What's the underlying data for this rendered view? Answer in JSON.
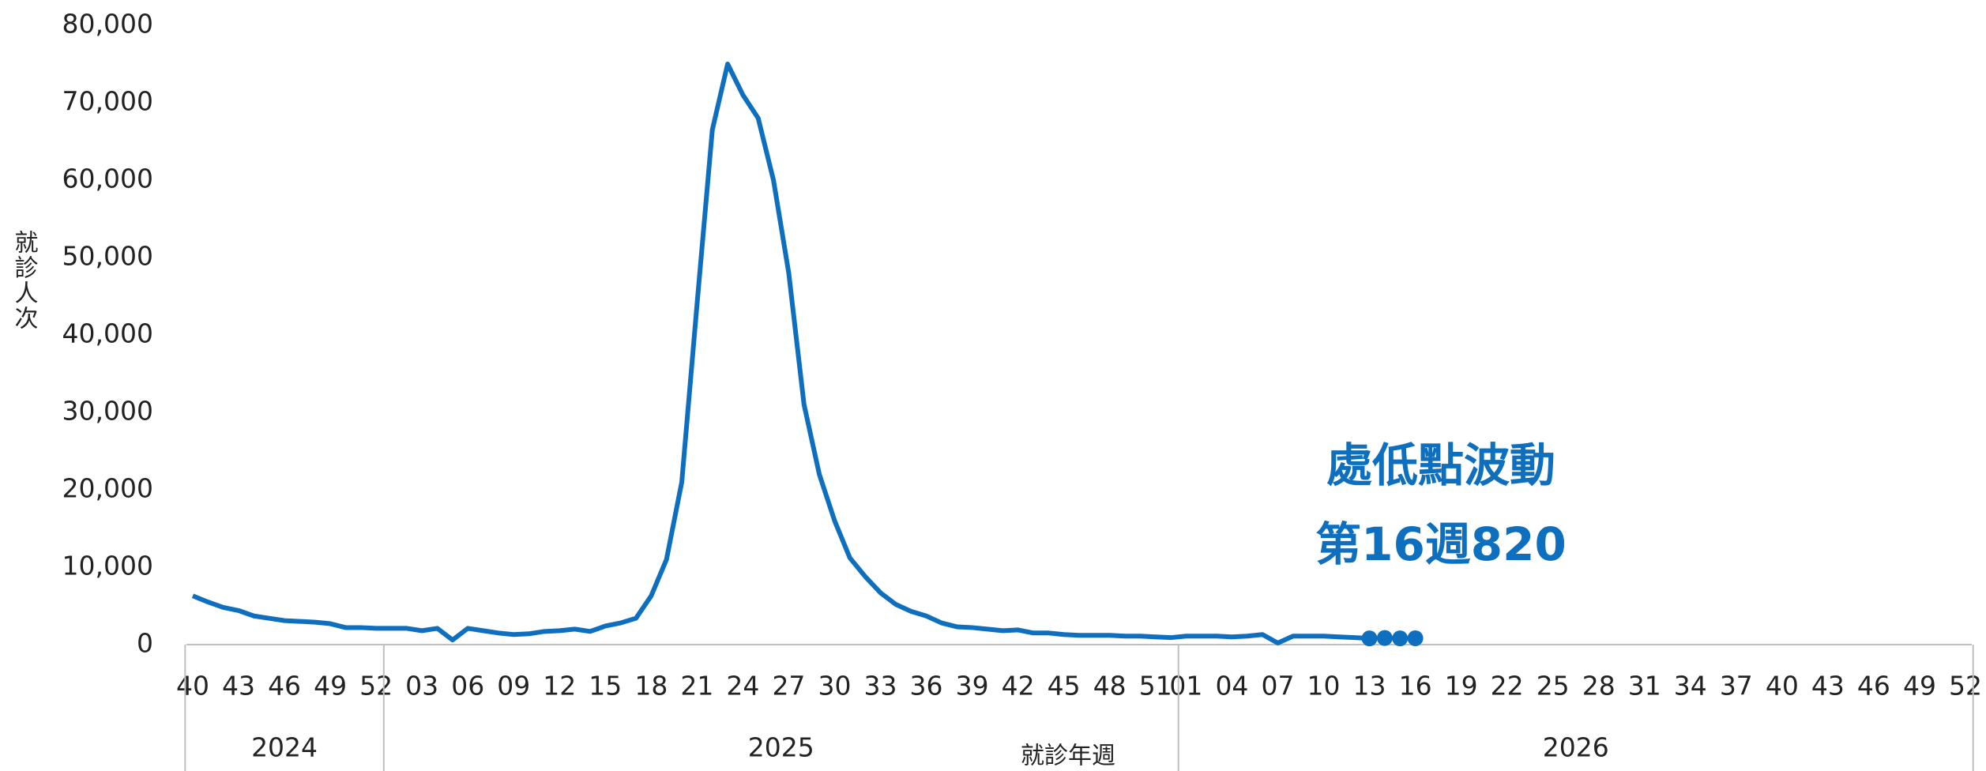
{
  "chart_data": {
    "type": "line",
    "y_label": "就診人次",
    "x_label": "就診年週",
    "annotations": [
      "處低點波動",
      "第16週820"
    ],
    "categories": [
      "40",
      null,
      null,
      "43",
      null,
      null,
      "46",
      null,
      null,
      "49",
      null,
      null,
      "52",
      null,
      null,
      "03",
      null,
      null,
      "06",
      null,
      null,
      "09",
      null,
      null,
      "12",
      null,
      null,
      "15",
      null,
      null,
      "18",
      null,
      null,
      "21",
      null,
      null,
      "24",
      null,
      null,
      "27",
      null,
      null,
      "30",
      null,
      null,
      "33",
      null,
      null,
      "36",
      null,
      null,
      "39",
      null,
      null,
      "42",
      null,
      null,
      "45",
      null,
      null,
      "48",
      null,
      null,
      "51",
      null,
      "01",
      null,
      null,
      "04",
      null,
      null,
      "07",
      null,
      null,
      "10",
      null,
      null,
      "13",
      null,
      null,
      "16",
      null,
      null,
      "19",
      null,
      null,
      "22",
      null,
      null,
      "25",
      null,
      null,
      "28",
      null,
      null,
      "31",
      null,
      null,
      "34",
      null,
      null,
      "37",
      null,
      null,
      "40",
      null,
      null,
      "43",
      null,
      null,
      "46",
      null,
      null,
      "49",
      null,
      null,
      "52"
    ],
    "year_groups": [
      {
        "label": "2024",
        "weeks": 13
      },
      {
        "label": "2025",
        "weeks": 52
      },
      {
        "label": "2026",
        "weeks": 52
      }
    ],
    "series": [
      {
        "color": "#0e6fbe",
        "marker": "line",
        "values": [
          6300,
          5500,
          4800,
          4400,
          3700,
          3400,
          3100,
          3000,
          2900,
          2700,
          2200,
          2200,
          2100,
          2100,
          2100,
          1800,
          2100,
          600,
          2100,
          1800,
          1500,
          1300,
          1400,
          1700,
          1800,
          2000,
          1700,
          2400,
          2800,
          3400,
          6300,
          11000,
          21000,
          44000,
          66500,
          75000,
          71000,
          68000,
          60000,
          48000,
          31000,
          22000,
          16000,
          11200,
          8800,
          6700,
          5200,
          4300,
          3700,
          2800,
          2300,
          2200,
          2000,
          1800,
          1900,
          1500,
          1500,
          1300,
          1200,
          1200,
          1200,
          1100,
          1100,
          1000,
          900,
          1100,
          1100,
          1100,
          1000,
          1100,
          1300,
          200,
          1100,
          1100,
          1100,
          1000,
          900,
          800,
          null,
          null,
          null,
          null,
          null,
          null,
          null,
          null,
          null,
          null,
          null,
          null,
          null,
          null,
          null,
          null,
          null,
          null,
          null,
          null,
          null,
          null,
          null,
          null,
          null,
          null,
          null,
          null,
          null,
          null,
          null,
          null,
          null,
          null,
          null,
          null,
          null,
          null,
          null
        ]
      },
      {
        "color": "#0e6fbe",
        "marker": "dot",
        "values": [
          null,
          null,
          null,
          null,
          null,
          null,
          null,
          null,
          null,
          null,
          null,
          null,
          null,
          null,
          null,
          null,
          null,
          null,
          null,
          null,
          null,
          null,
          null,
          null,
          null,
          null,
          null,
          null,
          null,
          null,
          null,
          null,
          null,
          null,
          null,
          null,
          null,
          null,
          null,
          null,
          null,
          null,
          null,
          null,
          null,
          null,
          null,
          null,
          null,
          null,
          null,
          null,
          null,
          null,
          null,
          null,
          null,
          null,
          null,
          null,
          null,
          null,
          null,
          null,
          null,
          null,
          null,
          null,
          null,
          null,
          null,
          null,
          null,
          null,
          null,
          null,
          null,
          800,
          850,
          800,
          820,
          null,
          null,
          null,
          null,
          null,
          null,
          null,
          null,
          null,
          null,
          null,
          null,
          null,
          null,
          null,
          null,
          null,
          null,
          null,
          null,
          null,
          null,
          null,
          null,
          null,
          null,
          null,
          null,
          null,
          null,
          null,
          null,
          null,
          null,
          null,
          null
        ]
      }
    ],
    "ylim": [
      0,
      80000
    ],
    "yticks": [
      0,
      {
        "value": 10000,
        "label": "10,000"
      },
      {
        "value": 20000,
        "label": "20,000"
      },
      {
        "value": 30000,
        "label": "30,000"
      },
      {
        "value": 40000,
        "label": "40,000"
      },
      {
        "value": 50000,
        "label": "50,000"
      },
      {
        "value": 60000,
        "label": "60,000"
      },
      {
        "value": 70000,
        "label": "70,000"
      },
      {
        "value": 80000,
        "label": "80,000"
      }
    ],
    "grid": false
  }
}
